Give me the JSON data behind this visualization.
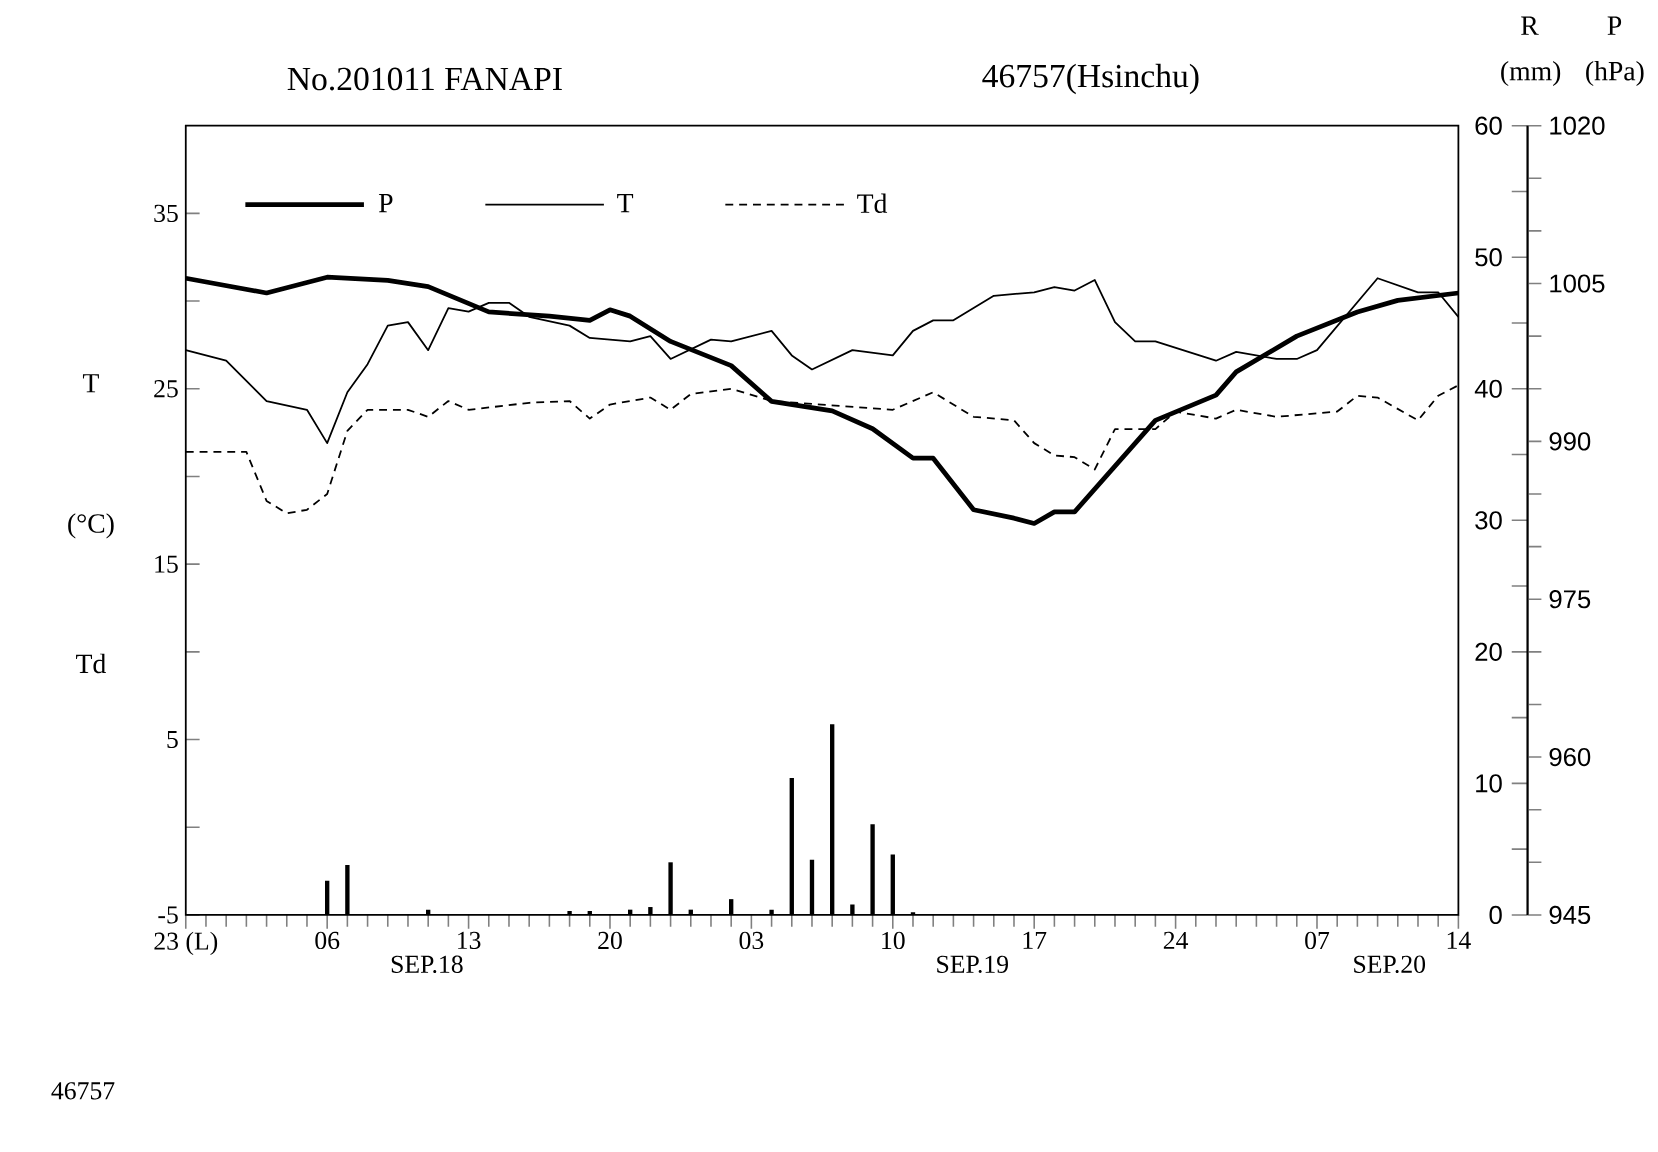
{
  "chart_data": {
    "type": "line",
    "title": "No.201011 FANAPI",
    "subtitle": "46757(Hsinchu)",
    "ylabel": "T (°C) Td",
    "y2label": "R (mm)",
    "y3label": "P (hPa)",
    "annotations": [
      "SEP.18",
      "SEP.19",
      "SEP.20",
      "46757"
    ],
    "xlim": [
      "2010-09-17T23:00",
      "2010-09-20T14:00"
    ],
    "ylim": [
      -5,
      40
    ],
    "y2lim": [
      0,
      60
    ],
    "y3lim": [
      945,
      1020
    ],
    "xticks": [
      {
        "value": "2010-09-17T23:00",
        "label": "23 (L)"
      },
      {
        "value": "2010-09-18T06:00",
        "label": "06"
      },
      {
        "value": "2010-09-18T13:00",
        "label": "13"
      },
      {
        "value": "2010-09-18T20:00",
        "label": "20"
      },
      {
        "value": "2010-09-19T03:00",
        "label": "03"
      },
      {
        "value": "2010-09-19T10:00",
        "label": "10"
      },
      {
        "value": "2010-09-19T17:00",
        "label": "17"
      },
      {
        "value": "2010-09-20T00:00",
        "label": "24"
      },
      {
        "value": "2010-09-20T07:00",
        "label": "07"
      },
      {
        "value": "2010-09-20T14:00",
        "label": "14"
      }
    ],
    "yticks": [
      -5,
      {
        "value": 0,
        "label": null
      },
      5,
      {
        "value": 10,
        "label": null
      },
      15,
      {
        "value": 20,
        "label": null
      },
      25,
      {
        "value": 30,
        "label": null
      },
      35
    ],
    "y2ticks": [
      0,
      10,
      20,
      30,
      40,
      50,
      60
    ],
    "y3ticks": [
      945,
      960,
      975,
      990,
      1005,
      1020
    ],
    "grid": false,
    "legend": "top left",
    "marker": "none",
    "series": [
      {
        "name": "P",
        "axis": "y3",
        "color": "#000000",
        "line_style": "solid",
        "x": [
          "2010-09-17T23:00",
          "2010-09-18T03:00",
          "2010-09-18T06:00",
          "2010-09-18T09:00",
          "2010-09-18T11:00",
          "2010-09-18T14:00",
          "2010-09-18T17:00",
          "2010-09-18T19:00",
          "2010-09-18T20:00",
          "2010-09-18T21:00",
          "2010-09-18T23:00",
          "2010-09-19T02:00",
          "2010-09-19T04:00",
          "2010-09-19T07:00",
          "2010-09-19T09:00",
          "2010-09-19T11:00",
          "2010-09-19T12:00",
          "2010-09-19T14:00",
          "2010-09-19T16:00",
          "2010-09-19T17:00",
          "2010-09-19T18:00",
          "2010-09-19T19:00",
          "2010-09-19T23:00",
          "2010-09-20T02:00",
          "2010-09-20T03:00",
          "2010-09-20T06:00",
          "2010-09-20T09:00",
          "2010-09-20T11:00",
          "2010-09-20T14:00"
        ],
        "values": [
          1005.5,
          1004.1,
          1005.6,
          1005.3,
          1004.7,
          1002.3,
          1001.9,
          1001.5,
          1002.5,
          1001.9,
          999.5,
          997.2,
          993.8,
          992.9,
          991.2,
          988.4,
          988.4,
          983.5,
          982.7,
          982.2,
          983.3,
          983.3,
          992.0,
          994.4,
          996.6,
          1000.0,
          1002.3,
          1003.4,
          1004.1
        ]
      },
      {
        "name": "T",
        "color": "#000000",
        "line_style": "solid",
        "x": [
          "2010-09-17T23:00",
          "2010-09-18T01:00",
          "2010-09-18T03:00",
          "2010-09-18T05:00",
          "2010-09-18T06:00",
          "2010-09-18T07:00",
          "2010-09-18T08:00",
          "2010-09-18T09:00",
          "2010-09-18T10:00",
          "2010-09-18T11:00",
          "2010-09-18T12:00",
          "2010-09-18T13:00",
          "2010-09-18T14:00",
          "2010-09-18T15:00",
          "2010-09-18T16:00",
          "2010-09-18T18:00",
          "2010-09-18T19:00",
          "2010-09-18T21:00",
          "2010-09-18T22:00",
          "2010-09-18T23:00",
          "2010-09-19T01:00",
          "2010-09-19T02:00",
          "2010-09-19T04:00",
          "2010-09-19T05:00",
          "2010-09-19T06:00",
          "2010-09-19T08:00",
          "2010-09-19T10:00",
          "2010-09-19T11:00",
          "2010-09-19T12:00",
          "2010-09-19T13:00",
          "2010-09-19T15:00",
          "2010-09-19T17:00",
          "2010-09-19T18:00",
          "2010-09-19T19:00",
          "2010-09-19T20:00",
          "2010-09-19T21:00",
          "2010-09-19T22:00",
          "2010-09-19T23:00",
          "2010-09-20T02:00",
          "2010-09-20T03:00",
          "2010-09-20T05:00",
          "2010-09-20T06:00",
          "2010-09-20T07:00",
          "2010-09-20T10:00",
          "2010-09-20T12:00",
          "2010-09-20T13:00",
          "2010-09-20T14:00"
        ],
        "values": [
          27.2,
          26.6,
          24.3,
          23.8,
          21.9,
          24.8,
          26.4,
          28.6,
          28.8,
          27.2,
          29.6,
          29.4,
          29.9,
          29.9,
          29.1,
          28.6,
          27.9,
          27.7,
          28.0,
          26.7,
          27.8,
          27.7,
          28.3,
          26.9,
          26.1,
          27.2,
          26.9,
          28.3,
          28.9,
          28.9,
          30.3,
          30.5,
          30.8,
          30.6,
          31.2,
          28.8,
          27.7,
          27.7,
          26.6,
          27.1,
          26.7,
          26.7,
          27.2,
          31.3,
          30.5,
          30.5,
          29.1
        ]
      },
      {
        "name": "Td",
        "color": "#000000",
        "line_style": "dashed",
        "x": [
          "2010-09-17T23:00",
          "2010-09-18T02:00",
          "2010-09-18T03:00",
          "2010-09-18T04:00",
          "2010-09-18T05:00",
          "2010-09-18T06:00",
          "2010-09-18T07:00",
          "2010-09-18T08:00",
          "2010-09-18T10:00",
          "2010-09-18T11:00",
          "2010-09-18T12:00",
          "2010-09-18T13:00",
          "2010-09-18T16:00",
          "2010-09-18T18:00",
          "2010-09-18T19:00",
          "2010-09-18T20:00",
          "2010-09-18T22:00",
          "2010-09-18T23:00",
          "2010-09-19T00:00",
          "2010-09-19T02:00",
          "2010-09-19T04:00",
          "2010-09-19T10:00",
          "2010-09-19T12:00",
          "2010-09-19T14:00",
          "2010-09-19T16:00",
          "2010-09-19T17:00",
          "2010-09-19T18:00",
          "2010-09-19T19:00",
          "2010-09-19T20:00",
          "2010-09-19T21:00",
          "2010-09-19T23:00",
          "2010-09-20T00:00",
          "2010-09-20T02:00",
          "2010-09-20T03:00",
          "2010-09-20T05:00",
          "2010-09-20T08:00",
          "2010-09-20T09:00",
          "2010-09-20T10:00",
          "2010-09-20T12:00",
          "2010-09-20T13:00",
          "2010-09-20T14:00"
        ],
        "values": [
          21.4,
          21.4,
          18.6,
          17.9,
          18.1,
          19.0,
          22.6,
          23.8,
          23.8,
          23.4,
          24.3,
          23.8,
          24.2,
          24.3,
          23.3,
          24.1,
          24.5,
          23.8,
          24.7,
          25.0,
          24.3,
          23.8,
          24.8,
          23.4,
          23.2,
          21.9,
          21.2,
          21.1,
          20.4,
          22.7,
          22.7,
          23.7,
          23.3,
          23.8,
          23.4,
          23.7,
          24.6,
          24.5,
          23.2,
          24.6,
          25.2
        ]
      },
      {
        "type": "bar",
        "axis": "y2",
        "color": "#000000",
        "x": [
          "2010-09-18T06:00",
          "2010-09-18T07:00",
          "2010-09-18T11:00",
          "2010-09-18T18:00",
          "2010-09-18T19:00",
          "2010-09-18T21:00",
          "2010-09-18T22:00",
          "2010-09-18T23:00",
          "2010-09-19T00:00",
          "2010-09-19T02:00",
          "2010-09-19T04:00",
          "2010-09-19T05:00",
          "2010-09-19T06:00",
          "2010-09-19T07:00",
          "2010-09-19T08:00",
          "2010-09-19T09:00",
          "2010-09-19T10:00",
          "2010-09-19T11:00"
        ],
        "values": [
          2.6,
          3.8,
          0.4,
          0.3,
          0.3,
          0.4,
          0.6,
          4.0,
          0.4,
          1.2,
          0.4,
          10.4,
          4.2,
          14.5,
          0.8,
          6.9,
          4.6,
          0.2
        ]
      }
    ]
  }
}
